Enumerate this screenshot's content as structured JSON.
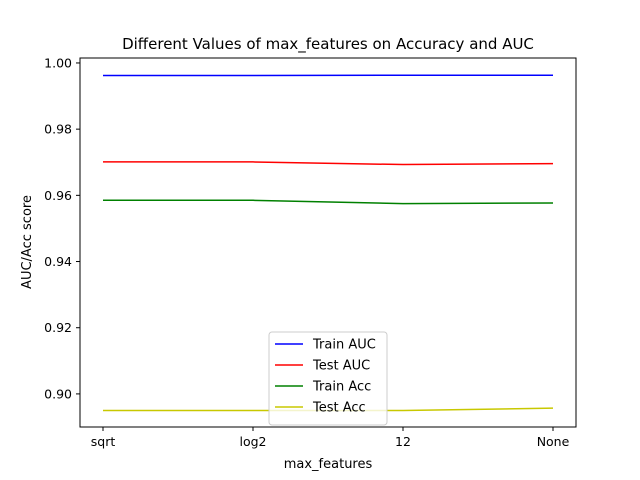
{
  "chart_data": {
    "type": "line",
    "title": "Different Values of max_features on Accuracy and AUC",
    "xlabel": "max_features",
    "ylabel": "AUC/Acc score",
    "categories": [
      "sqrt",
      "log2",
      "12",
      "None"
    ],
    "ylim": [
      0.89,
      1.0015
    ],
    "yticks": [
      0.9,
      0.92,
      0.94,
      0.96,
      0.98,
      1.0
    ],
    "ytick_labels": [
      "0.90",
      "0.92",
      "0.94",
      "0.96",
      "0.98",
      "1.00"
    ],
    "grid": false,
    "legend_position": "lower-center",
    "series": [
      {
        "name": "Train AUC",
        "color": "#0000ff",
        "values": [
          0.9962,
          0.9962,
          0.9963,
          0.9963
        ]
      },
      {
        "name": "Test AUC",
        "color": "#ff0000",
        "values": [
          0.9701,
          0.9701,
          0.9693,
          0.9696
        ]
      },
      {
        "name": "Train Acc",
        "color": "#008000",
        "values": [
          0.9585,
          0.9585,
          0.9575,
          0.9577
        ]
      },
      {
        "name": "Test Acc",
        "color": "#c8c800",
        "values": [
          0.895,
          0.895,
          0.895,
          0.8957
        ]
      }
    ]
  }
}
